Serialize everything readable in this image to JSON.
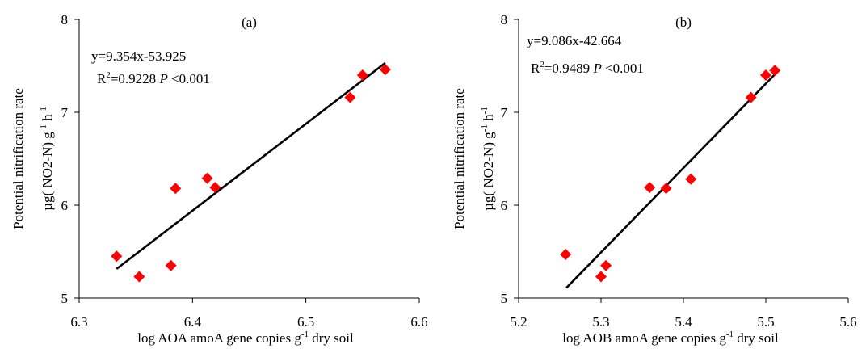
{
  "chart_data": [
    {
      "type": "scatter",
      "panel_label": "(a)",
      "xlabel_parts": [
        "log AOA amoA gene copies  g",
        "-1",
        " dry soil"
      ],
      "ylabel_line1": "Potential nitrification rate",
      "ylabel_line2_parts": [
        "µg( NO2-N) g",
        "-1",
        " h",
        "-1"
      ],
      "xlim": [
        6.3,
        6.6
      ],
      "ylim": [
        5,
        8
      ],
      "xticks": [
        6.3,
        6.4,
        6.5,
        6.6
      ],
      "xtick_labels": [
        "6.3",
        "6.4",
        "6.5",
        "6.6"
      ],
      "yticks": [
        5,
        6,
        7,
        8
      ],
      "ytick_labels": [
        "5",
        "6",
        "7",
        "8"
      ],
      "grid": false,
      "marker_color": "#ff0000",
      "line_color": "#000000",
      "points": [
        {
          "x": 6.333,
          "y": 5.45
        },
        {
          "x": 6.353,
          "y": 5.23
        },
        {
          "x": 6.381,
          "y": 5.35
        },
        {
          "x": 6.385,
          "y": 6.18
        },
        {
          "x": 6.413,
          "y": 6.29
        },
        {
          "x": 6.42,
          "y": 6.19
        },
        {
          "x": 6.539,
          "y": 7.16
        },
        {
          "x": 6.55,
          "y": 7.4
        },
        {
          "x": 6.57,
          "y": 7.46
        }
      ],
      "regression": {
        "slope": 9.354,
        "intercept": -53.925,
        "x_range": [
          6.333,
          6.57
        ]
      },
      "equation": "y=9.354x-53.925",
      "r2_label": "R",
      "r2_exp": "2",
      "r2_value": "=0.9228",
      "p_symbol": "P",
      "p_value": "<0.001"
    },
    {
      "type": "scatter",
      "panel_label": "(b)",
      "xlabel_parts": [
        "log AOB amoA gene copies  g",
        "-1",
        " dry soil"
      ],
      "ylabel_line1": "Potential nitrification rate",
      "ylabel_line2_parts": [
        "µg( NO2-N) g",
        "-1",
        " h",
        "-1"
      ],
      "xlim": [
        5.2,
        5.6
      ],
      "ylim": [
        5,
        8
      ],
      "xticks": [
        5.2,
        5.3,
        5.4,
        5.5,
        5.6
      ],
      "xtick_labels": [
        "5.2",
        "5.3",
        "5.4",
        "5.5",
        "5.6"
      ],
      "yticks": [
        5,
        6,
        7,
        8
      ],
      "ytick_labels": [
        "5",
        "6",
        "7",
        "8"
      ],
      "grid": false,
      "marker_color": "#ff0000",
      "line_color": "#000000",
      "points": [
        {
          "x": 5.257,
          "y": 5.47
        },
        {
          "x": 5.3,
          "y": 5.23
        },
        {
          "x": 5.306,
          "y": 5.35
        },
        {
          "x": 5.359,
          "y": 6.19
        },
        {
          "x": 5.379,
          "y": 6.18
        },
        {
          "x": 5.409,
          "y": 6.28
        },
        {
          "x": 5.482,
          "y": 7.16
        },
        {
          "x": 5.5,
          "y": 7.4
        },
        {
          "x": 5.511,
          "y": 7.45
        }
      ],
      "regression": {
        "slope": 9.086,
        "intercept": -42.664,
        "x_range": [
          5.258,
          5.511
        ]
      },
      "equation": "y=9.086x-42.664",
      "r2_label": "R",
      "r2_exp": "2",
      "r2_value": "=0.9489",
      "p_symbol": "P",
      "p_value": "<0.001"
    }
  ]
}
